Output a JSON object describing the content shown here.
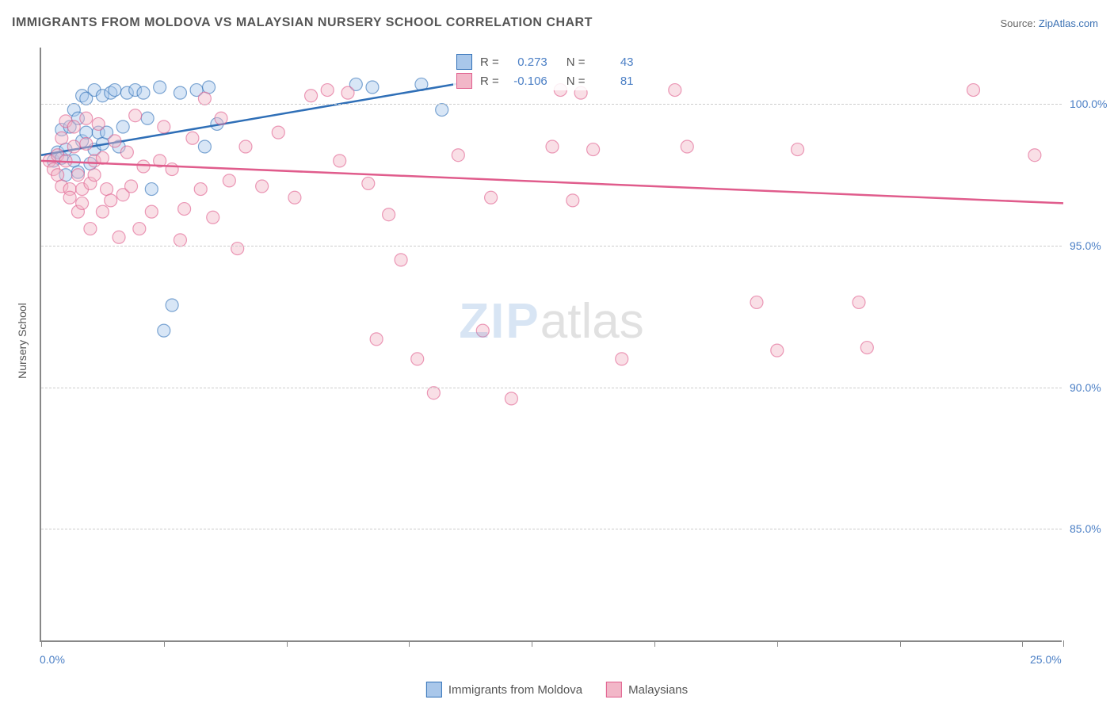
{
  "title": "IMMIGRANTS FROM MOLDOVA VS MALAYSIAN NURSERY SCHOOL CORRELATION CHART",
  "source_label": "Source: ",
  "source_name": "ZipAtlas.com",
  "ylabel": "Nursery School",
  "watermark_zip": "ZIP",
  "watermark_atlas": "atlas",
  "chart": {
    "type": "scatter",
    "xlim": [
      0,
      25
    ],
    "ylim": [
      81,
      102
    ],
    "xticks": [
      0,
      3,
      6,
      9,
      12,
      15,
      18,
      21,
      24,
      25
    ],
    "visible_xtick_labels": {
      "0": "0.0%",
      "25": "25.0%"
    },
    "yticks": [
      85,
      90,
      95,
      100
    ],
    "ytick_labels": [
      "85.0%",
      "90.0%",
      "95.0%",
      "100.0%"
    ],
    "grid_color": "#cccccc",
    "axis_color": "#888888",
    "background": "#ffffff",
    "marker_radius": 8,
    "marker_opacity": 0.45,
    "series": [
      {
        "name": "Immigrants from Moldova",
        "color_fill": "#a9c7ea",
        "color_stroke": "#2f6fb7",
        "line_color": "#2f6fb7",
        "r_value": "0.273",
        "n_value": "43",
        "trend": {
          "x1": 0,
          "y1": 98.2,
          "x2": 10.5,
          "y2": 100.8
        },
        "points": [
          [
            0.3,
            98.0
          ],
          [
            0.4,
            98.3
          ],
          [
            0.5,
            98.1
          ],
          [
            0.5,
            99.1
          ],
          [
            0.6,
            98.4
          ],
          [
            0.6,
            97.5
          ],
          [
            0.7,
            99.2
          ],
          [
            0.8,
            98.0
          ],
          [
            0.8,
            99.8
          ],
          [
            0.9,
            97.6
          ],
          [
            0.9,
            99.5
          ],
          [
            1.0,
            98.7
          ],
          [
            1.0,
            100.3
          ],
          [
            1.1,
            99.0
          ],
          [
            1.1,
            100.2
          ],
          [
            1.2,
            97.9
          ],
          [
            1.3,
            100.5
          ],
          [
            1.3,
            98.4
          ],
          [
            1.4,
            99.0
          ],
          [
            1.5,
            100.3
          ],
          [
            1.5,
            98.6
          ],
          [
            1.6,
            99.0
          ],
          [
            1.7,
            100.4
          ],
          [
            1.8,
            100.5
          ],
          [
            1.9,
            98.5
          ],
          [
            2.0,
            99.2
          ],
          [
            2.1,
            100.4
          ],
          [
            2.3,
            100.5
          ],
          [
            2.5,
            100.4
          ],
          [
            2.6,
            99.5
          ],
          [
            2.7,
            97.0
          ],
          [
            2.9,
            100.6
          ],
          [
            3.0,
            92.0
          ],
          [
            3.2,
            92.9
          ],
          [
            3.4,
            100.4
          ],
          [
            3.8,
            100.5
          ],
          [
            4.0,
            98.5
          ],
          [
            4.1,
            100.6
          ],
          [
            4.3,
            99.3
          ],
          [
            7.7,
            100.7
          ],
          [
            8.1,
            100.6
          ],
          [
            9.3,
            100.7
          ],
          [
            9.8,
            99.8
          ]
        ]
      },
      {
        "name": "Malaysians",
        "color_fill": "#f2b7c8",
        "color_stroke": "#e05c8c",
        "line_color": "#e05c8c",
        "r_value": "-0.106",
        "n_value": "81",
        "trend": {
          "x1": 0,
          "y1": 98.0,
          "x2": 25,
          "y2": 96.5
        },
        "points": [
          [
            0.2,
            98.0
          ],
          [
            0.3,
            97.7
          ],
          [
            0.4,
            98.2
          ],
          [
            0.4,
            97.5
          ],
          [
            0.5,
            98.8
          ],
          [
            0.5,
            97.1
          ],
          [
            0.6,
            98.0
          ],
          [
            0.6,
            99.4
          ],
          [
            0.7,
            97.0
          ],
          [
            0.7,
            96.7
          ],
          [
            0.8,
            98.5
          ],
          [
            0.8,
            99.2
          ],
          [
            0.9,
            97.5
          ],
          [
            0.9,
            96.2
          ],
          [
            1.0,
            97.0
          ],
          [
            1.0,
            96.5
          ],
          [
            1.1,
            98.6
          ],
          [
            1.1,
            99.5
          ],
          [
            1.2,
            97.2
          ],
          [
            1.2,
            95.6
          ],
          [
            1.3,
            98.0
          ],
          [
            1.3,
            97.5
          ],
          [
            1.4,
            99.3
          ],
          [
            1.5,
            96.2
          ],
          [
            1.5,
            98.1
          ],
          [
            1.6,
            97.0
          ],
          [
            1.7,
            96.6
          ],
          [
            1.8,
            98.7
          ],
          [
            1.9,
            95.3
          ],
          [
            2.0,
            96.8
          ],
          [
            2.1,
            98.3
          ],
          [
            2.2,
            97.1
          ],
          [
            2.3,
            99.6
          ],
          [
            2.4,
            95.6
          ],
          [
            2.5,
            97.8
          ],
          [
            2.7,
            96.2
          ],
          [
            2.9,
            98.0
          ],
          [
            3.0,
            99.2
          ],
          [
            3.2,
            97.7
          ],
          [
            3.4,
            95.2
          ],
          [
            3.5,
            96.3
          ],
          [
            3.7,
            98.8
          ],
          [
            3.9,
            97.0
          ],
          [
            4.0,
            100.2
          ],
          [
            4.2,
            96.0
          ],
          [
            4.4,
            99.5
          ],
          [
            4.6,
            97.3
          ],
          [
            4.8,
            94.9
          ],
          [
            5.0,
            98.5
          ],
          [
            5.4,
            97.1
          ],
          [
            5.8,
            99.0
          ],
          [
            6.2,
            96.7
          ],
          [
            6.6,
            100.3
          ],
          [
            7.0,
            100.5
          ],
          [
            7.3,
            98.0
          ],
          [
            7.5,
            100.4
          ],
          [
            8.0,
            97.2
          ],
          [
            8.2,
            91.7
          ],
          [
            8.5,
            96.1
          ],
          [
            8.8,
            94.5
          ],
          [
            9.2,
            91.0
          ],
          [
            9.6,
            89.8
          ],
          [
            10.2,
            98.2
          ],
          [
            10.8,
            92.0
          ],
          [
            11.0,
            96.7
          ],
          [
            11.5,
            89.6
          ],
          [
            12.5,
            98.5
          ],
          [
            12.7,
            100.5
          ],
          [
            13.0,
            96.6
          ],
          [
            13.2,
            100.4
          ],
          [
            13.5,
            98.4
          ],
          [
            14.2,
            91.0
          ],
          [
            15.5,
            100.5
          ],
          [
            15.8,
            98.5
          ],
          [
            17.5,
            93.0
          ],
          [
            18.0,
            91.3
          ],
          [
            18.5,
            98.4
          ],
          [
            20.0,
            93.0
          ],
          [
            20.2,
            91.4
          ],
          [
            22.8,
            100.5
          ],
          [
            24.3,
            98.2
          ]
        ]
      }
    ]
  },
  "legend_top": {
    "r_label": "R = ",
    "n_label": "N = "
  },
  "legend_bottom": {
    "series1_swatch_fill": "#a9c7ea",
    "series1_swatch_stroke": "#2f6fb7",
    "series2_swatch_fill": "#f2b7c8",
    "series2_swatch_stroke": "#e05c8c"
  }
}
